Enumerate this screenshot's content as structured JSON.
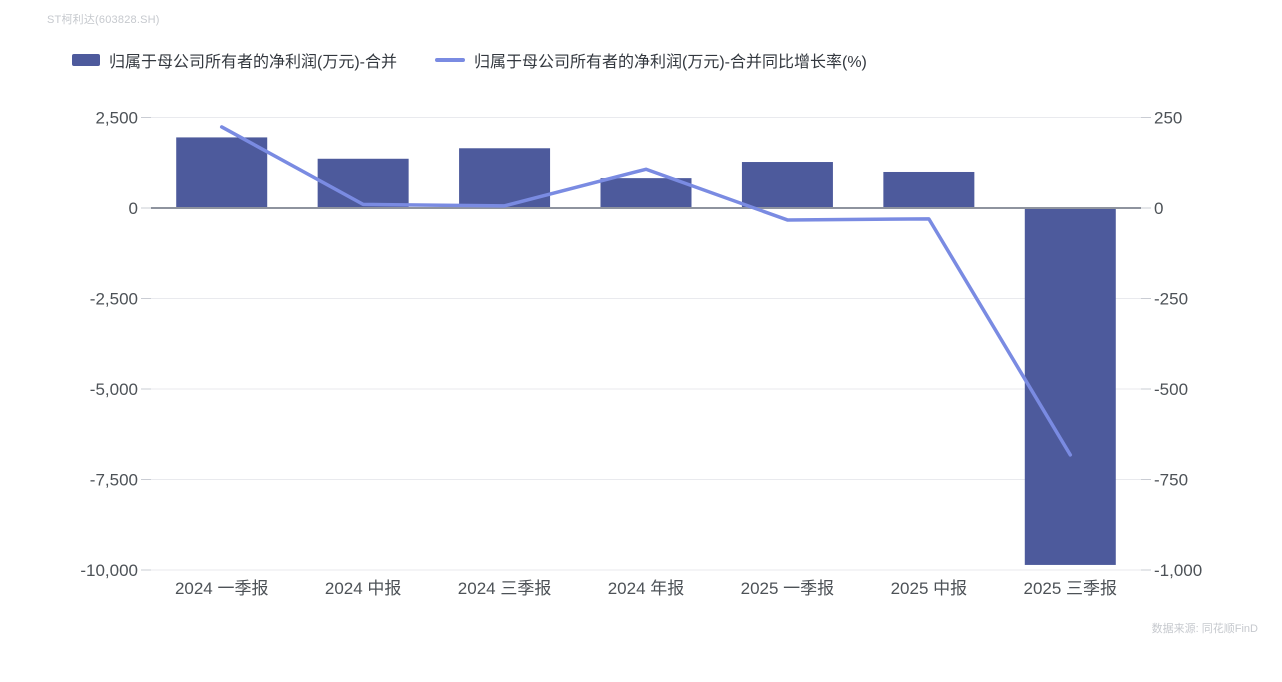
{
  "header": {
    "title": "ST柯利达(603828.SH)"
  },
  "footer": {
    "source": "数据来源: 同花顺FinD"
  },
  "chart_data": {
    "type": "bar+line combo",
    "title": "ST柯利达(603828.SH)",
    "categories": [
      "2024 一季报",
      "2024 中报",
      "2024 三季报",
      "2024 年报",
      "2025 一季报",
      "2025 中报",
      "2025 三季报"
    ],
    "series": [
      {
        "name": "归属于母公司所有者的净利润(万元)-合并",
        "type": "bar",
        "axis": "left",
        "color": "#4d5a9c",
        "values": [
          1950,
          1360,
          1650,
          825,
          1270,
          995,
          -9860
        ]
      },
      {
        "name": "归属于母公司所有者的净利润(万元)-合并同比增长率(%)",
        "type": "line",
        "axis": "right",
        "color": "#7a8be2",
        "values": [
          224,
          10,
          6,
          107,
          -33,
          -30,
          -682
        ]
      }
    ],
    "left_axis": {
      "min": -10000,
      "max": 2500,
      "ticks": [
        2500,
        0,
        -2500,
        -5000,
        -7500,
        -10000
      ],
      "tick_labels": [
        "2,500",
        "0",
        "-2,500",
        "-5,000",
        "-7,500",
        "-10,000"
      ]
    },
    "right_axis": {
      "min": -1000,
      "max": 250,
      "ticks": [
        250,
        0,
        -250,
        -500,
        -750,
        -1000
      ],
      "tick_labels": [
        "250",
        "0",
        "-250",
        "-500",
        "-750",
        "-1,000"
      ]
    },
    "grid": true,
    "legend_position": "top-left",
    "colors": {
      "grid_line": "#e9eaee",
      "zero_line": "#8e939e",
      "tick_mark": "#c9ccd3",
      "tick_text": "#4d5257",
      "x_label_text": "#4d5257"
    }
  }
}
